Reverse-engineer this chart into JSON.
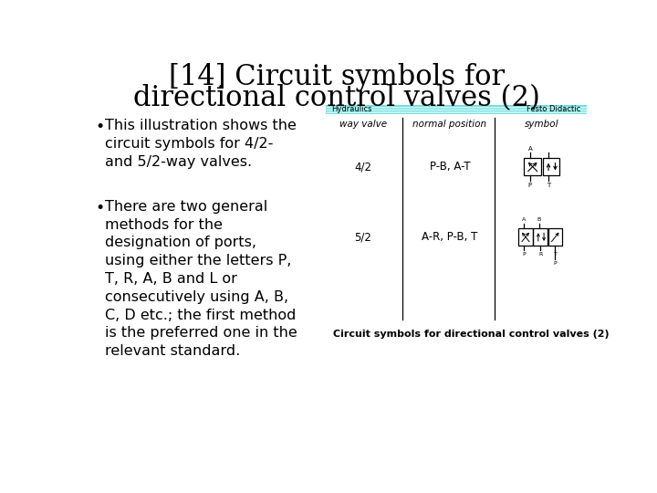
{
  "title_line1": "[14] Circuit symbols for",
  "title_line2": "directional control valves (2)",
  "title_fontsize": 22,
  "title_fontweight": "normal",
  "bg_color": "#ffffff",
  "bullet1": "This illustration shows the\ncircuit symbols for 4/2-\nand 5/2-way valves.",
  "bullet2": "There are two general\nmethods for the\ndesignation of ports,\nusing either the letters P,\nT, R, A, B and L or\nconsecutively using A, B,\nC, D etc.; the first method\nis the preferred one in the\nrelevant standard.",
  "bullet_fontsize": 11.5,
  "header_bar_color": "#6de0e0",
  "header_text_left": "Hydraulics",
  "header_text_right": "Festo Didactic",
  "header_fontsize": 6,
  "table_col_headers": [
    "way valve",
    "normal position",
    "symbol"
  ],
  "table_rows": [
    {
      "valve": "4/2",
      "position": "P-B, A-T"
    },
    {
      "valve": "5/2",
      "position": "A-R, P-B, T"
    }
  ],
  "caption": "Circuit symbols for directional control valves (2)",
  "caption_fontsize": 8
}
